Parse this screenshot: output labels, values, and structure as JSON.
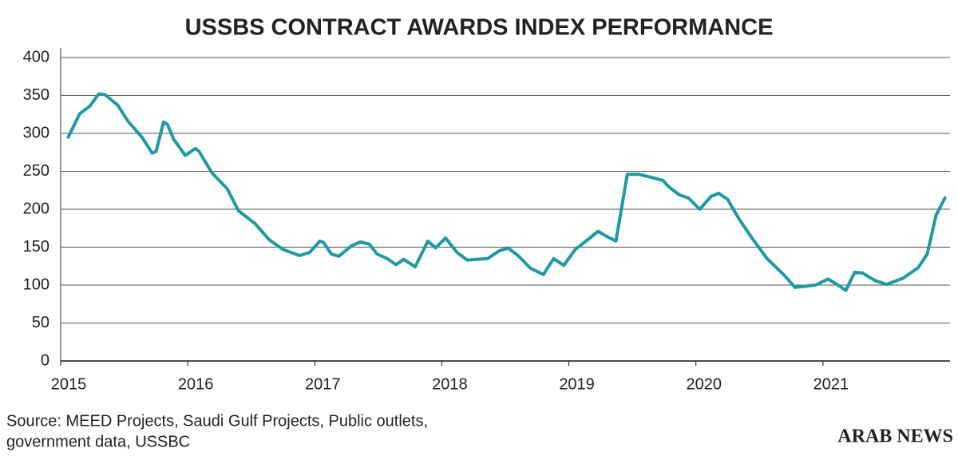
{
  "chart_data": {
    "type": "line",
    "title": "USSBS CONTRACT AWARDS INDEX PERFORMANCE",
    "source": [
      "Source: MEED Projects, Saudi Gulf Projects, Public outlets,",
      "government data, USSBC"
    ],
    "logo": "ARAB NEWS",
    "x": [
      2015.06,
      2015.15,
      2015.23,
      2015.3,
      2015.35,
      2015.45,
      2015.53,
      2015.64,
      2015.72,
      2015.75,
      2015.81,
      2015.84,
      2015.89,
      2015.98,
      2016.06,
      2016.09,
      2016.19,
      2016.31,
      2016.4,
      2016.53,
      2016.64,
      2016.75,
      2016.88,
      2016.96,
      2017.04,
      2017.07,
      2017.13,
      2017.19,
      2017.29,
      2017.36,
      2017.43,
      2017.49,
      2017.57,
      2017.64,
      2017.7,
      2017.79,
      2017.89,
      2017.95,
      2018.03,
      2018.12,
      2018.2,
      2018.36,
      2018.45,
      2018.52,
      2018.6,
      2018.7,
      2018.8,
      2018.88,
      2018.96,
      2019.05,
      2019.15,
      2019.23,
      2019.3,
      2019.37,
      2019.46,
      2019.55,
      2019.65,
      2019.74,
      2019.79,
      2019.87,
      2019.94,
      2020.03,
      2020.12,
      2020.18,
      2020.25,
      2020.34,
      2020.45,
      2020.56,
      2020.69,
      2020.78,
      2020.94,
      2021.04,
      2021.1,
      2021.18,
      2021.25,
      2021.31,
      2021.41,
      2021.5,
      2021.63,
      2021.75,
      2021.82,
      2021.89,
      2021.96
    ],
    "series": [
      {
        "color": "#1f9aa0",
        "values": [
          295,
          326,
          336,
          352,
          351,
          337,
          316,
          295,
          274,
          276,
          315,
          312,
          292,
          271,
          280,
          276,
          248,
          227,
          198,
          181,
          160,
          147,
          139,
          143,
          158,
          156,
          141,
          138,
          152,
          157,
          154,
          141,
          135,
          127,
          134,
          124,
          158,
          149,
          162,
          143,
          133,
          135,
          145,
          149,
          139,
          122,
          114,
          135,
          126,
          147,
          160,
          171,
          164,
          158,
          246,
          246,
          242,
          238,
          229,
          219,
          215,
          200,
          217,
          221,
          213,
          187,
          160,
          135,
          114,
          97,
          100,
          108,
          102,
          93,
          117,
          116,
          106,
          101,
          109,
          123,
          141,
          192,
          215
        ]
      }
    ],
    "xlim": [
      2015,
      2022
    ],
    "xticks": [
      2015,
      2016,
      2017,
      2018,
      2019,
      2020,
      2021
    ],
    "ylim": [
      0,
      400
    ],
    "yticks": [
      0,
      50,
      100,
      150,
      200,
      250,
      300,
      350,
      400
    ],
    "grid": true
  }
}
